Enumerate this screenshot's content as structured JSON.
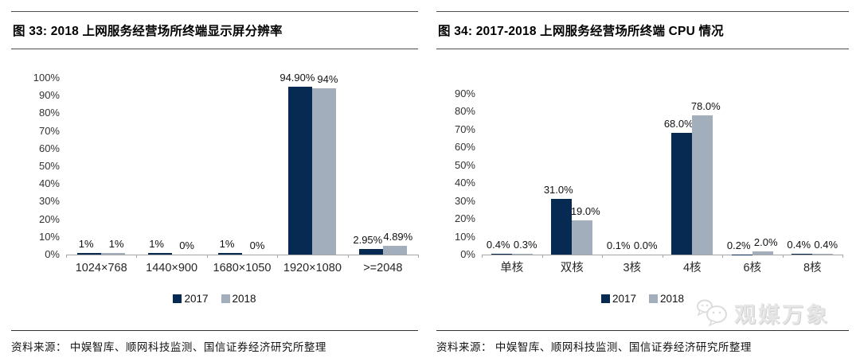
{
  "colors": {
    "series": {
      "2017": "#062a52",
      "2018": "#a2aebc"
    },
    "axis": "#a6a6a6",
    "rule": "#4d4d4d",
    "watermark": "#e6e6e6"
  },
  "panels": [
    {
      "title": "图 33:  2018 上网服务经营场所终端显示屏分辨率",
      "source": "资料来源： 中娱智库、顺网科技监测、国信证券经济研究所整理"
    },
    {
      "title": "图 34:  2017-2018 上网服务经营场所终端 CPU 情况",
      "source": "资料来源： 中娱智库、顺网科技监测、国信证券经济研究所整理"
    }
  ],
  "watermark": {
    "text": "观媒万象",
    "icon": "chat-bubbles"
  },
  "chart_data": [
    {
      "type": "bar",
      "title": "2018 上网服务经营场所终端显示屏分辨率",
      "categories": [
        "1024×768",
        "1440×900",
        "1680×1050",
        "1920×1080",
        ">=2048"
      ],
      "series": [
        {
          "name": "2017",
          "values": [
            1,
            1,
            1,
            94.9,
            2.95
          ],
          "labels": [
            "1%",
            "1%",
            "1%",
            "94.90%",
            "2.95%"
          ]
        },
        {
          "name": "2018",
          "values": [
            1,
            0,
            0,
            94,
            4.89
          ],
          "labels": [
            "1%",
            "0%",
            "0%",
            "94%",
            "4.89%"
          ]
        }
      ],
      "xlabel": "",
      "ylabel": "",
      "ylim": [
        0,
        100
      ],
      "ytick_step": 10,
      "ytick_format": "percent",
      "grid": false,
      "legend": [
        "2017",
        "2018"
      ],
      "legend_position": "bottom"
    },
    {
      "type": "bar",
      "title": "2017-2018 上网服务经营场所终端 CPU 情况",
      "categories": [
        "单核",
        "双核",
        "3核",
        "4核",
        "6核",
        "8核"
      ],
      "series": [
        {
          "name": "2017",
          "values": [
            0.4,
            31,
            0.1,
            68,
            0.2,
            0.4
          ],
          "labels": [
            "0.4%",
            "31.0%",
            "0.1%",
            "68.0%",
            "0.2%",
            "0.4%"
          ]
        },
        {
          "name": "2018",
          "values": [
            0.3,
            19,
            0,
            78,
            2,
            0.4
          ],
          "labels": [
            "0.3%",
            "19.0%",
            "0.0%",
            "78.0%",
            "2.0%",
            "0.4%"
          ]
        }
      ],
      "xlabel": "",
      "ylabel": "",
      "ylim": [
        0,
        90
      ],
      "ytick_step": 10,
      "ytick_format": "percent",
      "grid": false,
      "legend": [
        "2017",
        "2018"
      ],
      "legend_position": "bottom"
    }
  ]
}
